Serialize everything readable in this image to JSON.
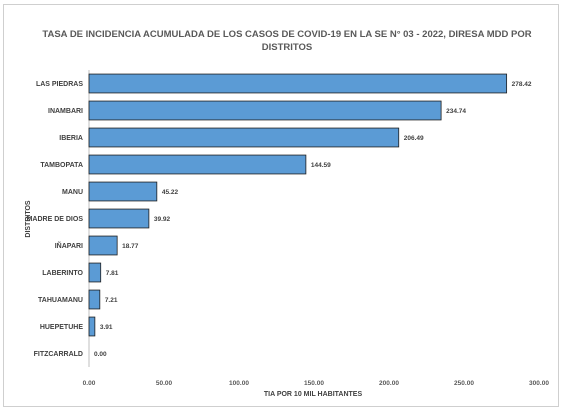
{
  "chart_data": {
    "type": "bar",
    "orientation": "horizontal",
    "title_lines": [
      "TASA DE INCIDENCIA ACUMULADA DE LOS CASOS DE COVID-19 EN LA SE N° 03 - 2022, DIRESA MDD POR",
      "DISTRITOS"
    ],
    "xlabel": "TIA POR 10 MIL HABITANTES",
    "ylabel": "DISTRITOS",
    "categories": [
      "LAS PIEDRAS",
      "INAMBARI",
      "IBERIA",
      "TAMBOPATA",
      "MANU",
      "MADRE DE DIOS",
      "IÑAPARI",
      "LABERINTO",
      "TAHUAMANU",
      "HUEPETUHE",
      "FITZCARRALD"
    ],
    "values": [
      278.42,
      234.74,
      206.49,
      144.59,
      45.22,
      39.92,
      18.77,
      7.81,
      7.21,
      3.91,
      0.0
    ],
    "value_labels": [
      "278.42",
      "234.74",
      "206.49",
      "144.59",
      "45.22",
      "39.92",
      "18.77",
      "7.81",
      "7.21",
      "3.91",
      "0.00"
    ],
    "xlim": [
      0,
      300
    ],
    "x_ticks": [
      0,
      50,
      100,
      150,
      200,
      250,
      300
    ],
    "x_tick_labels": [
      "0.00",
      "50.00",
      "100.00",
      "150.00",
      "200.00",
      "250.00",
      "300.00"
    ],
    "grid": false,
    "legend": "none",
    "bar_color": "#5b9bd5",
    "bar_edge_color": "#1f1f1f"
  }
}
